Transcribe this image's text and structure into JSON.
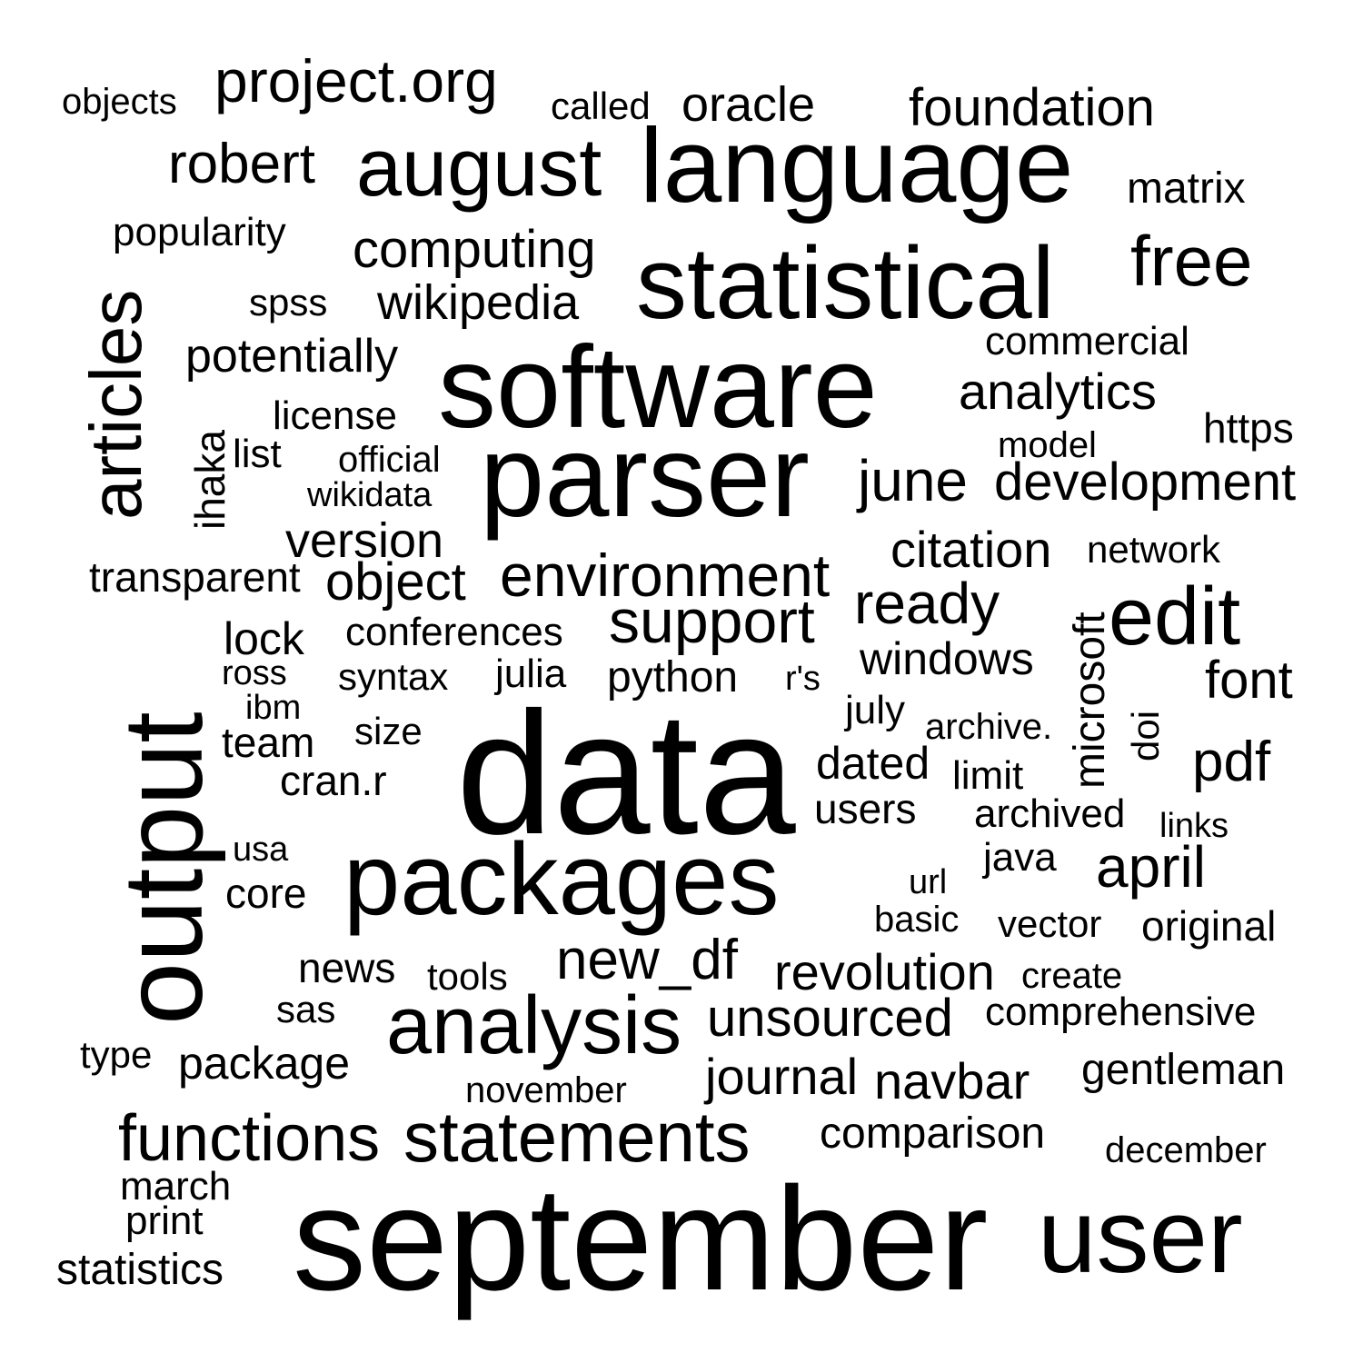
{
  "text_color": "#000000",
  "background_color": "#ffffff",
  "words": [
    {
      "text": "data",
      "frequency": 100
    },
    {
      "text": "september",
      "frequency": 84
    },
    {
      "text": "software",
      "frequency": 66
    },
    {
      "text": "parser",
      "frequency": 66
    },
    {
      "text": "output",
      "frequency": 64
    },
    {
      "text": "language",
      "frequency": 60
    },
    {
      "text": "user",
      "frequency": 60
    },
    {
      "text": "packages",
      "frequency": 58
    },
    {
      "text": "statistical",
      "frequency": 58
    },
    {
      "text": "august",
      "frequency": 46
    },
    {
      "text": "analysis",
      "frequency": 46
    },
    {
      "text": "edit",
      "frequency": 46
    },
    {
      "text": "articles",
      "frequency": 42
    },
    {
      "text": "statements",
      "frequency": 41
    },
    {
      "text": "free",
      "frequency": 40
    },
    {
      "text": "functions",
      "frequency": 37
    },
    {
      "text": "support",
      "frequency": 35
    },
    {
      "text": "environment",
      "frequency": 34
    },
    {
      "text": "project.org",
      "frequency": 34
    },
    {
      "text": "ready",
      "frequency": 33
    },
    {
      "text": "april",
      "frequency": 33
    },
    {
      "text": "june",
      "frequency": 33
    },
    {
      "text": "new_df",
      "frequency": 32
    },
    {
      "text": "pdf",
      "frequency": 32
    },
    {
      "text": "robert",
      "frequency": 32
    },
    {
      "text": "unsourced",
      "frequency": 30
    },
    {
      "text": "development",
      "frequency": 30
    },
    {
      "text": "computing",
      "frequency": 30
    },
    {
      "text": "object",
      "frequency": 30
    },
    {
      "text": "font",
      "frequency": 30
    },
    {
      "text": "foundation",
      "frequency": 30
    },
    {
      "text": "journal",
      "frequency": 29
    },
    {
      "text": "navbar",
      "frequency": 29
    },
    {
      "text": "citation",
      "frequency": 29
    },
    {
      "text": "revolution",
      "frequency": 29
    },
    {
      "text": "analytics",
      "frequency": 29
    },
    {
      "text": "wikipedia",
      "frequency": 28
    },
    {
      "text": "oracle",
      "frequency": 28
    },
    {
      "text": "version",
      "frequency": 28
    },
    {
      "text": "potentially",
      "frequency": 27
    },
    {
      "text": "windows",
      "frequency": 26
    },
    {
      "text": "lock",
      "frequency": 26
    },
    {
      "text": "dated",
      "frequency": 26
    },
    {
      "text": "package",
      "frequency": 26
    },
    {
      "text": "comparison",
      "frequency": 25
    },
    {
      "text": "gentleman",
      "frequency": 25
    },
    {
      "text": "python",
      "frequency": 25
    },
    {
      "text": "matrix",
      "frequency": 25
    },
    {
      "text": "microsoft",
      "frequency": 25
    },
    {
      "text": "statistics",
      "frequency": 25
    },
    {
      "text": "ihaka",
      "frequency": 24
    },
    {
      "text": "original",
      "frequency": 24
    },
    {
      "text": "team",
      "frequency": 24
    },
    {
      "text": "users",
      "frequency": 24
    },
    {
      "text": "cran.r",
      "frequency": 24
    },
    {
      "text": "core",
      "frequency": 24
    },
    {
      "text": "news",
      "frequency": 24
    },
    {
      "text": "https",
      "frequency": 24
    },
    {
      "text": "transparent",
      "frequency": 24
    },
    {
      "text": "archived",
      "frequency": 23
    },
    {
      "text": "commercial",
      "frequency": 23
    },
    {
      "text": "comprehensive",
      "frequency": 23
    },
    {
      "text": "conferences",
      "frequency": 23
    },
    {
      "text": "julia",
      "frequency": 23
    },
    {
      "text": "license",
      "frequency": 23
    },
    {
      "text": "limit",
      "frequency": 23
    },
    {
      "text": "list",
      "frequency": 23
    },
    {
      "text": "popularity",
      "frequency": 23
    },
    {
      "text": "print",
      "frequency": 23
    },
    {
      "text": "java",
      "frequency": 23
    },
    {
      "text": "july",
      "frequency": 23
    },
    {
      "text": "march",
      "frequency": 23
    },
    {
      "text": "called",
      "frequency": 22
    },
    {
      "text": "size",
      "frequency": 22
    },
    {
      "text": "spss",
      "frequency": 22
    },
    {
      "text": "syntax",
      "frequency": 22
    },
    {
      "text": "vector",
      "frequency": 22
    },
    {
      "text": "sas",
      "frequency": 22
    },
    {
      "text": "doi",
      "frequency": 22
    },
    {
      "text": "network",
      "frequency": 22
    },
    {
      "text": "tools",
      "frequency": 22
    },
    {
      "text": "type",
      "frequency": 22
    },
    {
      "text": "basic",
      "frequency": 21
    },
    {
      "text": "create",
      "frequency": 21
    },
    {
      "text": "december",
      "frequency": 21
    },
    {
      "text": "model",
      "frequency": 21
    },
    {
      "text": "objects",
      "frequency": 21
    },
    {
      "text": "november",
      "frequency": 21
    },
    {
      "text": "official",
      "frequency": 21
    },
    {
      "text": "archive.",
      "frequency": 21
    },
    {
      "text": "wikidata",
      "frequency": 20
    },
    {
      "text": "ross",
      "frequency": 20
    },
    {
      "text": "ibm",
      "frequency": 20
    },
    {
      "text": "r's",
      "frequency": 20
    },
    {
      "text": "usa",
      "frequency": 20
    },
    {
      "text": "url",
      "frequency": 20
    },
    {
      "text": "links",
      "frequency": 20
    }
  ]
}
